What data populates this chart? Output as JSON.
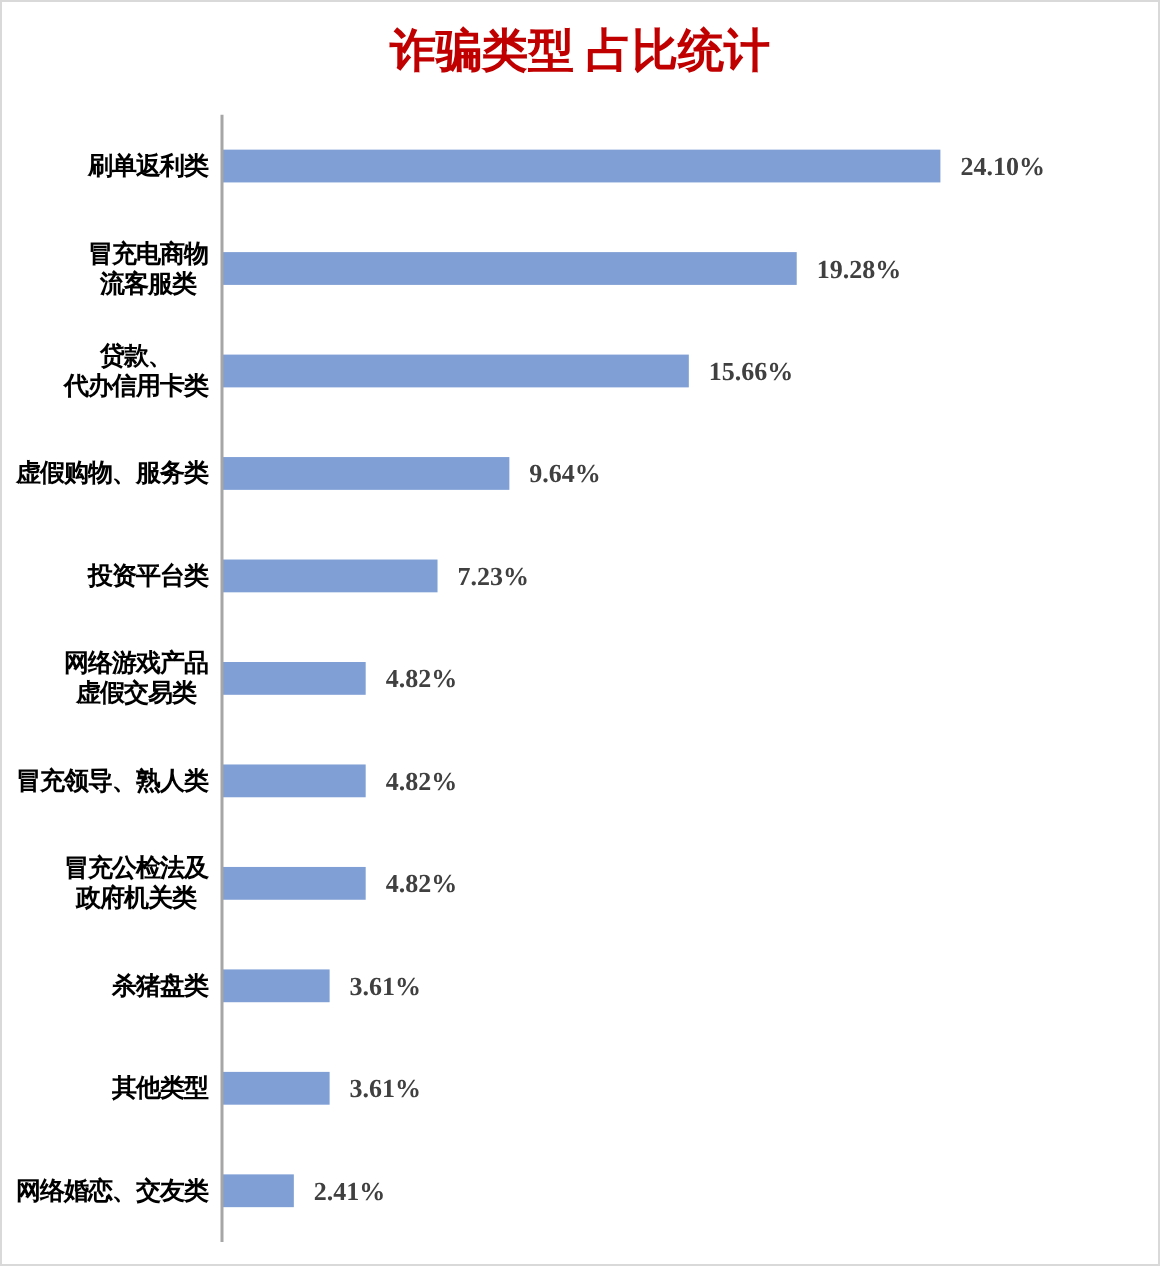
{
  "chart_data": {
    "type": "bar",
    "orientation": "horizontal",
    "title": "诈骗类型 占比统计",
    "categories": [
      "刷单返利类",
      "冒充电商物流客服类",
      "贷款、代办信用卡类",
      "虚假购物、服务类",
      "投资平台类",
      "网络游戏产品虚假交易类",
      "冒充领导、熟人类",
      "冒充公检法及政府机关类",
      "杀猪盘类",
      "其他类型",
      "网络婚恋、交友类"
    ],
    "values": [
      24.1,
      19.28,
      15.66,
      9.64,
      7.23,
      4.82,
      4.82,
      4.82,
      3.61,
      3.61,
      2.41
    ],
    "color": "#7f9fd5",
    "value_labels": [
      "24.10%",
      "19.28%",
      "15.66%",
      "9.64%",
      "7.23%",
      "4.82%",
      "4.82%",
      "4.82%",
      "3.61%",
      "3.61%",
      "2.41%"
    ]
  }
}
